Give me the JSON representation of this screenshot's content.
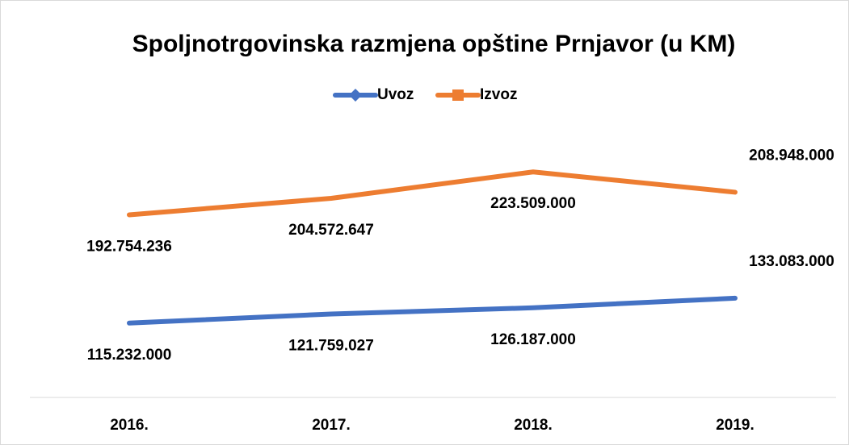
{
  "chart_data": {
    "type": "line",
    "title": "Spoljnotrgovinska razmjena opštine Prnjavor (u KM)",
    "categories": [
      "2016.",
      "2017.",
      "2018.",
      "2019."
    ],
    "series": [
      {
        "name": "Uvoz",
        "color": "#4472c4",
        "values": [
          115232000,
          121759027,
          126187000,
          133083000
        ],
        "value_labels": [
          "115.232.000",
          "121.759.027",
          "126.187.000",
          "133.083.000"
        ]
      },
      {
        "name": "Izvoz",
        "color": "#ed7d31",
        "values": [
          192754236,
          204572647,
          223509000,
          208948000
        ],
        "value_labels": [
          "192.754.236",
          "204.572.647",
          "223.509.000",
          "208.948.000"
        ]
      }
    ],
    "ylim": [
      62000000,
      260000000
    ],
    "legend": "top"
  }
}
